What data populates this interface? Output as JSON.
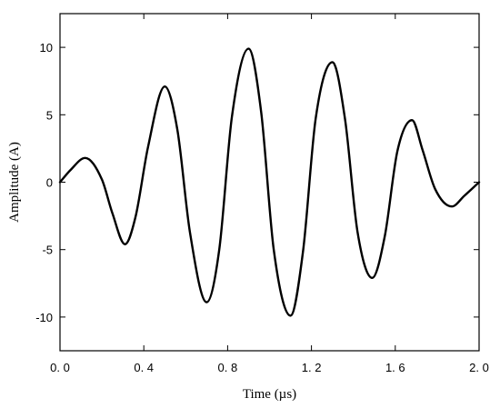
{
  "chart_data": {
    "type": "line",
    "title": "",
    "xlabel": "Time (µs)",
    "ylabel": "Amplitude (A)",
    "xlim": [
      0.0,
      2.0
    ],
    "ylim": [
      -12.5,
      12.5
    ],
    "x_ticks": [
      0.0,
      0.4,
      0.8,
      1.2,
      1.6,
      2.0
    ],
    "x_tick_labels": [
      "0. 0",
      "0. 4",
      "0. 8",
      "1. 2",
      "1. 6",
      "2. 0"
    ],
    "y_ticks": [
      10,
      5,
      0,
      -5,
      -10
    ],
    "y_tick_labels": [
      "10",
      "5",
      "0",
      "-5",
      "-10"
    ],
    "grid": false,
    "legend": "none",
    "line_color": "#000000",
    "series": [
      {
        "x": [
          0.0,
          0.05,
          0.12,
          0.2,
          0.25,
          0.31,
          0.36,
          0.42,
          0.5,
          0.56,
          0.62,
          0.7,
          0.76,
          0.82,
          0.9,
          0.96,
          1.02,
          1.1,
          1.16,
          1.22,
          1.3,
          1.36,
          1.42,
          1.49,
          1.55,
          1.61,
          1.68,
          1.73,
          1.79,
          1.87,
          1.93,
          2.0
        ],
        "values": [
          0.0,
          0.9,
          1.8,
          0.2,
          -2.3,
          -4.6,
          -2.6,
          2.6,
          7.1,
          3.9,
          -3.7,
          -8.9,
          -5.0,
          4.8,
          9.9,
          5.2,
          -5.0,
          -9.9,
          -5.1,
          4.7,
          8.9,
          4.7,
          -3.7,
          -7.1,
          -4.0,
          2.3,
          4.6,
          2.4,
          -0.5,
          -1.8,
          -1.0,
          0.0
        ]
      }
    ]
  }
}
